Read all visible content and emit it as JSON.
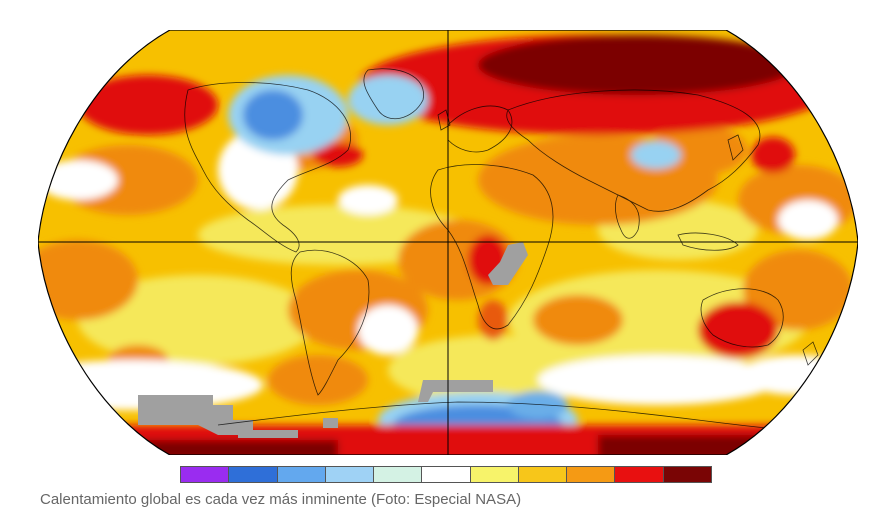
{
  "map": {
    "projection": "robinson",
    "subject": "global surface temperature anomaly",
    "colors": {
      "ocean_base": "#f7c000",
      "white": "#ffffff",
      "grey_nodata": "#a0a0a0",
      "light_yellow": "#f5e85a",
      "orange": "#f08a10",
      "dark_orange": "#e85a0a",
      "red": "#e00a0a",
      "dark_red": "#7c0404",
      "light_blue": "#98d2f2",
      "blue": "#4c8ee0",
      "mid_blue": "#6aaee8",
      "outline": "#000000"
    }
  },
  "legend": {
    "colors": [
      "#9a2cf0",
      "#2f6fd8",
      "#63a8ee",
      "#9fd2f5",
      "#d4f2e4",
      "#ffffff",
      "#f7f36a",
      "#f7c61a",
      "#f59a14",
      "#e81010",
      "#7a0505"
    ]
  },
  "caption": "Calentamiento global es cada vez más inminente (Foto: Especial NASA)"
}
